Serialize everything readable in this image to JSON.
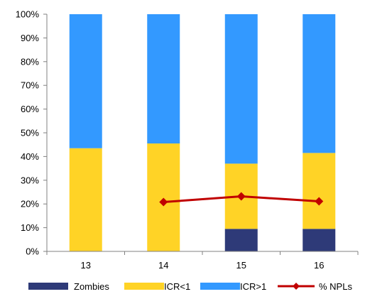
{
  "chart_data": {
    "type": "bar",
    "stacked": true,
    "percent_stacked": true,
    "categories": [
      "13",
      "14",
      "15",
      "16"
    ],
    "series": [
      {
        "name": "Zombies",
        "type": "bar",
        "color": "#2E3A78",
        "values": [
          0,
          0,
          9.5,
          9.5
        ]
      },
      {
        "name": "ICR<1",
        "type": "bar",
        "color": "#FFD326",
        "values": [
          43.5,
          45.5,
          27.5,
          32.0
        ]
      },
      {
        "name": "ICR>1",
        "type": "bar",
        "color": "#3399FF",
        "values": [
          56.5,
          54.5,
          63.0,
          58.5
        ]
      },
      {
        "name": "% NPLs",
        "type": "line",
        "color": "#C00000",
        "values": [
          null,
          20.8,
          23.2,
          21.1
        ]
      }
    ],
    "y_ticks": [
      "0%",
      "10%",
      "20%",
      "30%",
      "40%",
      "50%",
      "60%",
      "70%",
      "80%",
      "90%",
      "100%"
    ],
    "ylim": [
      0,
      100
    ],
    "grid": false,
    "legend_position": "bottom",
    "title": "",
    "xlabel": "",
    "ylabel": ""
  }
}
